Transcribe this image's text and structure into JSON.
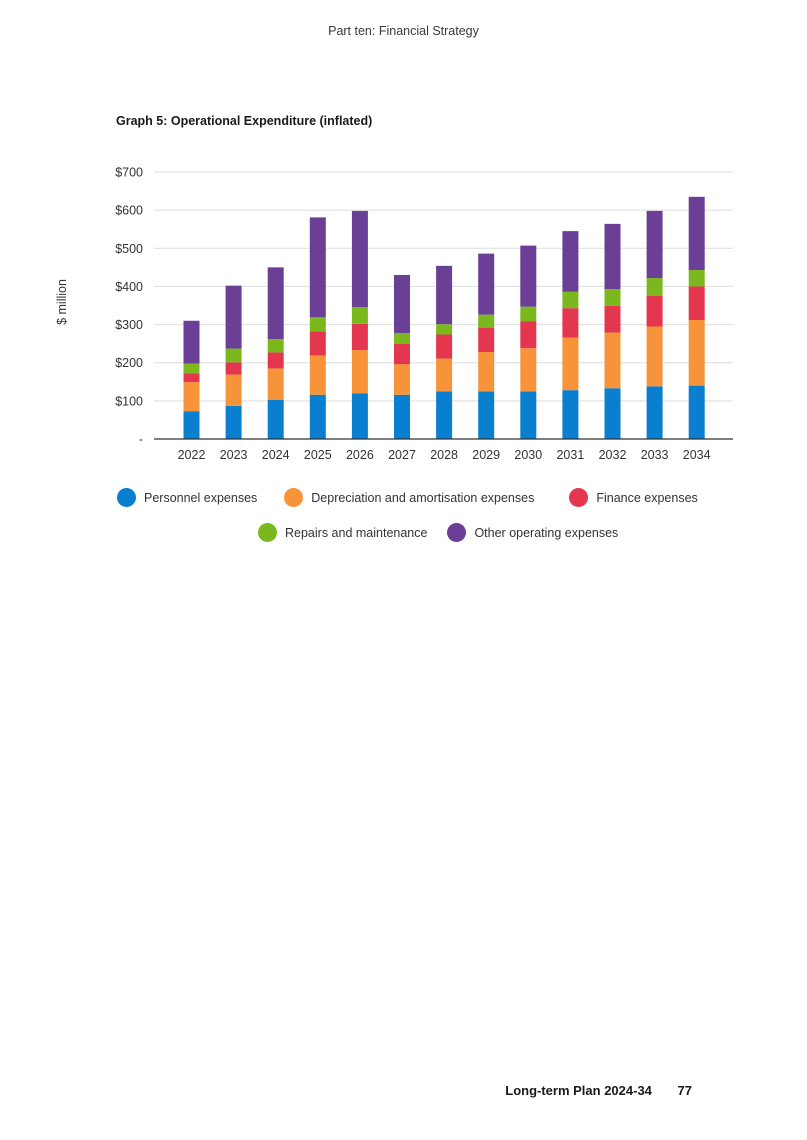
{
  "header": {
    "text": "Part ten: Financial Strategy"
  },
  "footer": {
    "plan": "Long-term Plan 2024-34",
    "page": "77"
  },
  "chart_data": {
    "type": "bar",
    "stacked": true,
    "title": "Graph 5: Operational Expenditure (inflated)",
    "ylabel": "$ million",
    "xlabel": "",
    "ylim": [
      0,
      700
    ],
    "yticks": [
      0,
      100,
      200,
      300,
      400,
      500,
      600,
      700
    ],
    "ytick_labels": [
      "-",
      "$100",
      "$200",
      "$300",
      "$400",
      "$500",
      "$600",
      "$700"
    ],
    "grid": true,
    "legend_position": "bottom",
    "categories": [
      "2022",
      "2023",
      "2024",
      "2025",
      "2026",
      "2027",
      "2028",
      "2029",
      "2030",
      "2031",
      "2032",
      "2033",
      "2034"
    ],
    "series": [
      {
        "name": "Personnel expenses",
        "color": "#0a7fd0",
        "values": [
          73,
          87,
          103,
          116,
          120,
          116,
          125,
          125,
          125,
          128,
          133,
          138,
          140
        ]
      },
      {
        "name": "Depreciation and amortisation expenses",
        "color": "#f7943a",
        "values": [
          76,
          82,
          82,
          103,
          113,
          80,
          86,
          103,
          113,
          138,
          146,
          157,
          172
        ]
      },
      {
        "name": "Finance expenses",
        "color": "#e4364f",
        "values": [
          23,
          32,
          42,
          63,
          69,
          53,
          63,
          64,
          71,
          77,
          70,
          80,
          88
        ]
      },
      {
        "name": "Repairs and maintenance",
        "color": "#7ab81e",
        "values": [
          26,
          36,
          35,
          37,
          44,
          29,
          27,
          34,
          38,
          43,
          44,
          47,
          43
        ]
      },
      {
        "name": "Other operating expenses",
        "color": "#6b3f95",
        "values": [
          112,
          165,
          188,
          262,
          252,
          152,
          153,
          160,
          160,
          159,
          171,
          176,
          192
        ]
      }
    ]
  }
}
